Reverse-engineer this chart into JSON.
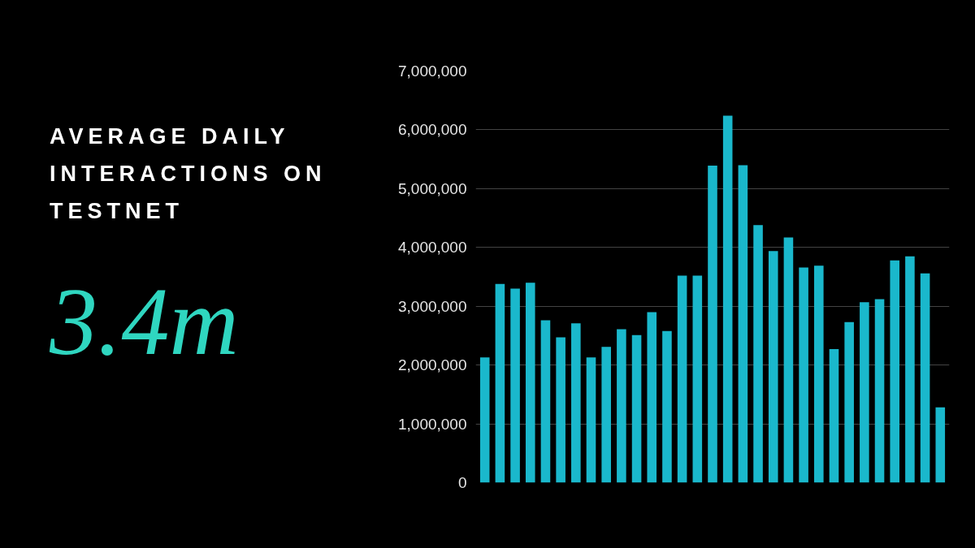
{
  "chart_data": {
    "type": "bar",
    "title": "AVERAGE DAILY INTERACTIONS ON TESTNET",
    "annotations": [
      "3.4m"
    ],
    "categories": [
      null,
      null,
      null,
      null,
      null,
      null,
      null,
      null,
      null,
      null,
      null,
      null,
      null,
      null,
      null,
      null,
      null,
      null,
      null,
      null,
      null,
      null,
      null,
      null,
      null,
      null,
      null,
      null,
      null,
      null,
      null
    ],
    "values": [
      2130000,
      3380000,
      3300000,
      3400000,
      2760000,
      2470000,
      2710000,
      2130000,
      2310000,
      2610000,
      2510000,
      2900000,
      2580000,
      3520000,
      3520000,
      5390000,
      6240000,
      5400000,
      4380000,
      3940000,
      4170000,
      3660000,
      3690000,
      2270000,
      2730000,
      3070000,
      3120000,
      3780000,
      3850000,
      3560000,
      1280000
    ],
    "color": "#1ab8cc",
    "ylim": [
      0,
      7000000
    ],
    "yticks": [
      0,
      {
        "value": 1000000,
        "label": "1,000,000"
      },
      {
        "value": 2000000,
        "label": "2,000,000"
      },
      {
        "value": 3000000,
        "label": "3,000,000"
      },
      {
        "value": 4000000,
        "label": "4,000,000"
      },
      {
        "value": 5000000,
        "label": "5,000,000"
      },
      {
        "value": 6000000,
        "label": "6,000,000"
      },
      {
        "value": 7000000,
        "label": "7,000,000"
      }
    ],
    "grid": "y",
    "tick_labels": "y"
  }
}
